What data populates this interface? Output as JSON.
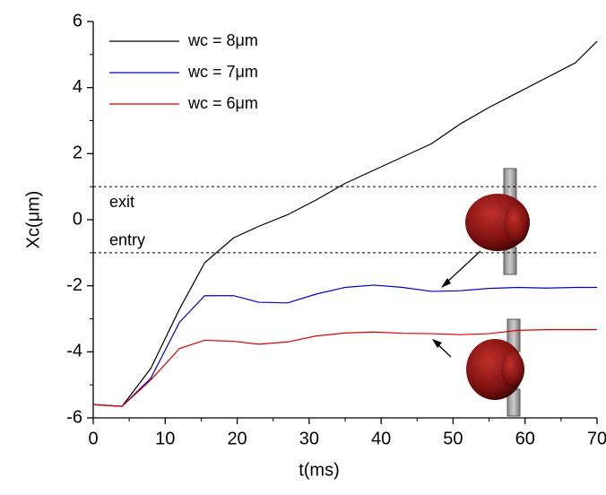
{
  "chart_data": {
    "type": "line",
    "x_label": "t(ms)",
    "y_label": "Xc(μm)",
    "x": [
      0,
      4,
      8,
      12,
      15.5,
      19.5,
      23,
      27,
      31,
      35,
      39,
      43,
      47,
      51,
      55,
      59,
      63,
      67,
      70
    ],
    "series": [
      {
        "name": "wc = 8μm",
        "color": "#000000",
        "values": [
          -5.6,
          -5.65,
          -4.5,
          -2.7,
          -1.3,
          -0.55,
          -0.2,
          0.15,
          0.6,
          1.1,
          1.5,
          1.9,
          2.3,
          2.9,
          3.4,
          3.85,
          4.3,
          4.75,
          5.4
        ]
      },
      {
        "name": "wc = 7μm",
        "color": "#0000cc",
        "values": [
          -5.6,
          -5.65,
          -4.8,
          -3.1,
          -2.3,
          -2.3,
          -2.5,
          -2.52,
          -2.25,
          -2.05,
          -1.98,
          -2.05,
          -2.17,
          -2.15,
          -2.08,
          -2.05,
          -2.07,
          -2.05,
          -2.05
        ]
      },
      {
        "name": "wc = 6μm",
        "color": "#dd0000",
        "values": [
          -5.6,
          -5.65,
          -4.85,
          -3.9,
          -3.65,
          -3.68,
          -3.77,
          -3.7,
          -3.52,
          -3.43,
          -3.4,
          -3.44,
          -3.45,
          -3.48,
          -3.45,
          -3.35,
          -3.33,
          -3.33,
          -3.33
        ]
      }
    ],
    "reference_lines": [
      {
        "value": 1,
        "label": "exit"
      },
      {
        "value": -1,
        "label": "entry"
      }
    ],
    "xlim": [
      0,
      70
    ],
    "xticks": [
      0,
      10,
      20,
      30,
      40,
      50,
      60,
      70
    ],
    "ylim": [
      -6,
      6
    ],
    "yticks": [
      -6,
      -4,
      -2,
      0,
      2,
      4,
      6
    ],
    "grid": false,
    "legend": "top-left"
  }
}
